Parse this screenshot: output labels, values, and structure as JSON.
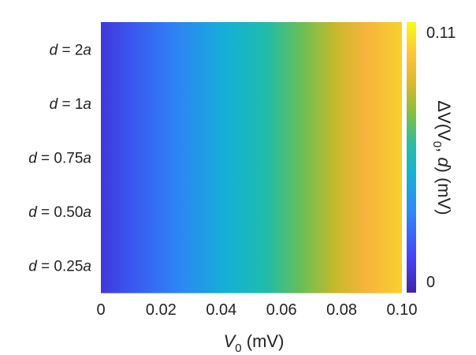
{
  "chart_data": {
    "type": "heatmap",
    "title": "",
    "x": {
      "min": 0,
      "max": 0.1,
      "ticks": [
        "0",
        "0.02",
        "0.04",
        "0.06",
        "0.08",
        "0.10"
      ]
    },
    "xlabel": {
      "symbol": "V",
      "subscript": "0",
      "unit": "(mV)"
    },
    "rows": [
      {
        "var": "d",
        "eq": " = ",
        "value": "2",
        "unit": "a"
      },
      {
        "var": "d",
        "eq": " = ",
        "value": "1",
        "unit": "a"
      },
      {
        "var": "d",
        "eq": " = ",
        "value": "0.75",
        "unit": "a"
      },
      {
        "var": "d",
        "eq": " = ",
        "value": "0.50",
        "unit": "a"
      },
      {
        "var": "d",
        "eq": " = ",
        "value": "0.25",
        "unit": "a"
      }
    ],
    "z_equals_x": true,
    "colorbar": {
      "min": 0,
      "max": 0.11,
      "tick_labels": [
        "0",
        "0.11"
      ],
      "label": {
        "delta": "ΔV(V",
        "subscript": "0",
        "mid": ", ",
        "var": "d",
        "tail": ") (mV)"
      },
      "colormap": [
        "#3e26a8",
        "#4743f5",
        "#2d8af7",
        "#16b3d0",
        "#2ebc9f",
        "#86c03c",
        "#dfb82a",
        "#fcc43a",
        "#f9fb15"
      ]
    }
  }
}
